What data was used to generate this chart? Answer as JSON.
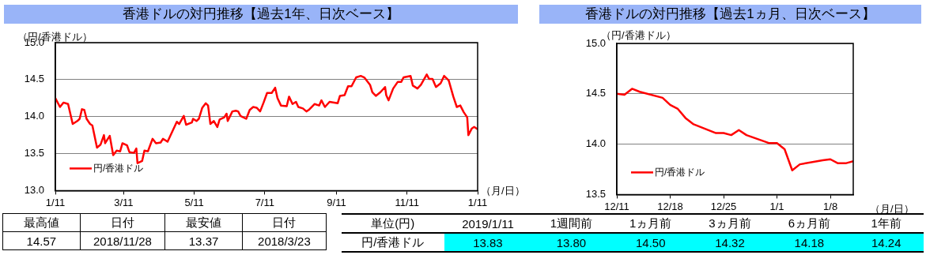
{
  "chart_data": [
    {
      "type": "line",
      "title": "香港ドルの対円推移【過去1年、日次ベース】",
      "ylabel": "（円/香港ドル）",
      "xlabel": "（月/日）",
      "x": [
        "2018-01-11",
        "2018-01-15",
        "2018-01-18",
        "2018-01-22",
        "2018-01-26",
        "2018-01-30",
        "2018-02-01",
        "2018-02-03",
        "2018-02-05",
        "2018-02-07",
        "2018-02-10",
        "2018-02-12",
        "2018-02-16",
        "2018-02-19",
        "2018-02-22",
        "2018-02-23",
        "2018-02-27",
        "2018-03-02",
        "2018-03-05",
        "2018-03-08",
        "2018-03-10",
        "2018-03-14",
        "2018-03-16",
        "2018-03-20",
        "2018-03-22",
        "2018-03-23",
        "2018-03-27",
        "2018-03-29",
        "2018-04-01",
        "2018-04-05",
        "2018-04-08",
        "2018-04-12",
        "2018-04-14",
        "2018-04-18",
        "2018-04-26",
        "2018-04-28",
        "2018-05-02",
        "2018-05-04",
        "2018-05-09",
        "2018-05-10",
        "2018-05-13",
        "2018-05-15",
        "2018-05-18",
        "2018-05-21",
        "2018-05-23",
        "2018-05-25",
        "2018-05-28",
        "2018-05-31",
        "2018-06-02",
        "2018-06-06",
        "2018-06-08",
        "2018-06-09",
        "2018-06-13",
        "2018-06-16",
        "2018-06-18",
        "2018-06-20",
        "2018-06-25",
        "2018-06-28",
        "2018-07-01",
        "2018-07-04",
        "2018-07-07",
        "2018-07-10",
        "2018-07-13",
        "2018-07-17",
        "2018-07-20",
        "2018-07-22",
        "2018-07-25",
        "2018-07-30",
        "2018-08-01",
        "2018-08-04",
        "2018-08-07",
        "2018-08-09",
        "2018-08-13",
        "2018-08-16",
        "2018-08-18",
        "2018-08-23",
        "2018-08-27",
        "2018-08-29",
        "2018-09-01",
        "2018-09-05",
        "2018-09-12",
        "2018-09-14",
        "2018-09-18",
        "2018-09-21",
        "2018-09-24",
        "2018-09-28",
        "2018-10-02",
        "2018-10-05",
        "2018-10-10",
        "2018-10-12",
        "2018-10-15",
        "2018-10-19",
        "2018-10-23",
        "2018-10-24",
        "2018-10-26",
        "2018-10-30",
        "2018-11-03",
        "2018-11-06",
        "2018-11-08",
        "2018-11-14",
        "2018-11-16",
        "2018-11-20",
        "2018-11-23",
        "2018-11-28",
        "2018-11-30",
        "2018-12-03",
        "2018-12-06",
        "2018-12-10",
        "2018-12-13",
        "2018-12-17",
        "2018-12-21",
        "2018-12-24",
        "2018-12-27",
        "2018-12-30",
        "2019-01-02",
        "2019-01-03",
        "2019-01-06",
        "2019-01-08",
        "2019-01-11"
      ],
      "series": [
        {
          "name": "円/香港ドル",
          "color": "#ff0000",
          "values": [
            14.25,
            14.13,
            14.19,
            14.17,
            13.9,
            13.94,
            13.97,
            14.1,
            14.09,
            13.97,
            13.9,
            13.88,
            13.58,
            13.62,
            13.75,
            13.64,
            13.74,
            13.48,
            13.54,
            13.53,
            13.64,
            13.61,
            13.52,
            13.51,
            13.57,
            13.37,
            13.4,
            13.54,
            13.53,
            13.7,
            13.64,
            13.65,
            13.7,
            13.66,
            13.93,
            13.9,
            14.01,
            13.89,
            13.92,
            13.97,
            13.94,
            13.97,
            14.12,
            14.18,
            14.15,
            13.9,
            13.94,
            13.86,
            13.96,
            13.99,
            14.04,
            13.94,
            14.07,
            14.08,
            14.07,
            14.01,
            13.97,
            14.09,
            14.13,
            14.12,
            14.07,
            14.19,
            14.32,
            14.32,
            14.39,
            14.25,
            14.15,
            14.14,
            14.27,
            14.17,
            14.2,
            14.13,
            14.11,
            14.07,
            14.09,
            14.17,
            14.15,
            14.22,
            14.13,
            14.2,
            14.18,
            14.28,
            14.29,
            14.41,
            14.41,
            14.53,
            14.55,
            14.53,
            14.43,
            14.33,
            14.28,
            14.33,
            14.4,
            14.29,
            14.22,
            14.38,
            14.47,
            14.47,
            14.53,
            14.55,
            14.42,
            14.38,
            14.43,
            14.57,
            14.51,
            14.51,
            14.4,
            14.45,
            14.55,
            14.49,
            14.27,
            14.13,
            14.15,
            14.06,
            13.99,
            13.75,
            13.84,
            13.86,
            13.83
          ]
        }
      ],
      "xlim": [
        "2018-01-11",
        "2019-01-11"
      ],
      "xticks": [
        {
          "value": "2018-01-11",
          "label": "1/11"
        },
        {
          "value": "2018-03-11",
          "label": "3/11"
        },
        {
          "value": "2018-05-11",
          "label": "5/11"
        },
        {
          "value": "2018-07-11",
          "label": "7/11"
        },
        {
          "value": "2018-09-11",
          "label": "9/11"
        },
        {
          "value": "2018-11-11",
          "label": "11/11"
        },
        {
          "value": "2019-01-11",
          "label": "1/11"
        }
      ],
      "ylim": [
        13.0,
        15.0
      ],
      "yticks": [
        {
          "value": 13.0,
          "label": "13.0"
        },
        {
          "value": 13.5,
          "label": "13.5"
        },
        {
          "value": 14.0,
          "label": "14.0"
        },
        {
          "value": 14.5,
          "label": "14.5"
        },
        {
          "value": 15.0,
          "label": "15.0"
        }
      ],
      "grid": "y",
      "legend": "bottom left",
      "marker": "none",
      "line_style": "solid"
    },
    {
      "type": "line",
      "title": "香港ドルの対円推移【過去1ヵ月、日次ベース】",
      "ylabel": "（円/香港ドル）",
      "xlabel": "（月/日）",
      "x": [
        "2018-12-11",
        "2018-12-12",
        "2018-12-13",
        "2018-12-14",
        "2018-12-17",
        "2018-12-18",
        "2018-12-19",
        "2018-12-20",
        "2018-12-21",
        "2018-12-24",
        "2018-12-25",
        "2018-12-26",
        "2018-12-27",
        "2018-12-28",
        "2018-12-31",
        "2019-01-01",
        "2019-01-02",
        "2019-01-03",
        "2019-01-04",
        "2019-01-07",
        "2019-01-08",
        "2019-01-09",
        "2019-01-10",
        "2019-01-11"
      ],
      "series": [
        {
          "name": "円/香港ドル",
          "color": "#ff0000",
          "values": [
            14.5,
            14.49,
            14.55,
            14.52,
            14.46,
            14.39,
            14.35,
            14.26,
            14.2,
            14.11,
            14.11,
            14.09,
            14.14,
            14.09,
            14.01,
            14.01,
            13.95,
            13.74,
            13.8,
            13.84,
            13.85,
            13.81,
            13.81,
            13.83
          ]
        }
      ],
      "xlim": [
        "2018-12-11",
        "2019-01-11"
      ],
      "xticks": [
        {
          "value": "2018-12-11",
          "label": "12/11"
        },
        {
          "value": "2018-12-18",
          "label": "12/18"
        },
        {
          "value": "2018-12-25",
          "label": "12/25"
        },
        {
          "value": "2019-01-01",
          "label": "1/1"
        },
        {
          "value": "2019-01-08",
          "label": "1/8"
        }
      ],
      "ylim": [
        13.5,
        15.0
      ],
      "yticks": [
        {
          "value": 13.5,
          "label": "13.5"
        },
        {
          "value": 14.0,
          "label": "14.0"
        },
        {
          "value": 14.5,
          "label": "14.5"
        },
        {
          "value": 15.0,
          "label": "15.0"
        }
      ],
      "grid": "y",
      "legend": "bottom left",
      "marker": "none",
      "line_style": "solid"
    },
    {
      "type": "other",
      "annotations": [
        "最高値",
        "日付",
        "最安値",
        "日付",
        "14.57",
        "2018/11/28",
        "13.37",
        "2018/3/23"
      ]
    },
    {
      "type": "other",
      "annotations": [
        "単位(円)",
        "2019/1/11",
        "1週間前",
        "1ヵ月前",
        "3ヵ月前",
        "6ヵ月前",
        "1年前",
        "円/香港ドル",
        "13.83",
        "13.80",
        "14.50",
        "14.32",
        "14.18",
        "14.24"
      ]
    }
  ]
}
